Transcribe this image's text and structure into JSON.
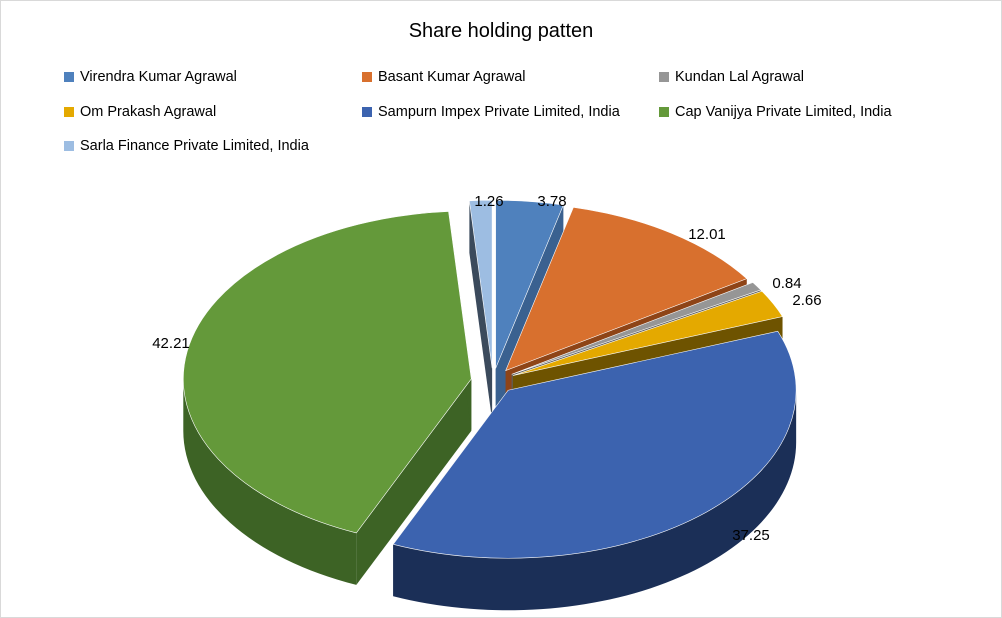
{
  "chart_data": {
    "type": "pie",
    "title": "Share holding patten",
    "legend_position": "top",
    "slices": [
      {
        "label": "Virendra Kumar Agrawal",
        "value": 3.78,
        "color": "#4f81bd",
        "side": "#3a6190"
      },
      {
        "label": "Basant Kumar Agrawal",
        "value": 12.01,
        "color": "#d8702e",
        "side": "#8e4417"
      },
      {
        "label": "Kundan Lal Agrawal",
        "value": 0.84,
        "color": "#969696",
        "side": "#5e5e5e"
      },
      {
        "label": "Om Prakash Agrawal",
        "value": 2.66,
        "color": "#e4a900",
        "side": "#6e5300"
      },
      {
        "label": "Sampurn Impex Private Limited, India",
        "value": 37.25,
        "color": "#3c63af",
        "side": "#1b2f57"
      },
      {
        "label": "Cap Vanijya Private Limited, India",
        "value": 42.21,
        "color": "#64993a",
        "side": "#3d6325"
      },
      {
        "label": "Sarla Finance Private Limited, India",
        "value": 1.26,
        "color": "#9dbde2",
        "side": "#3b4a5c"
      }
    ]
  }
}
